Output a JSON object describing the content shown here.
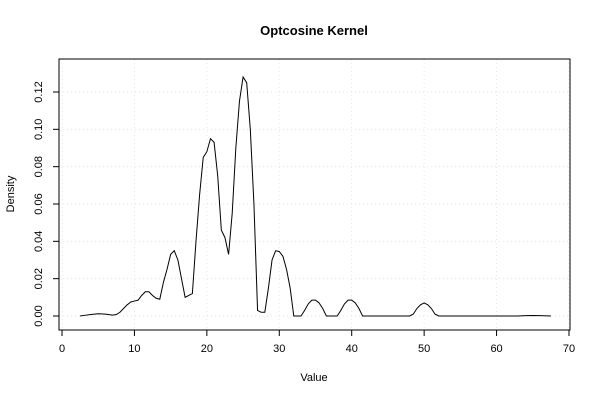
{
  "chart_data": {
    "type": "line",
    "title": "Optcosine Kernel",
    "xlabel": "Value",
    "ylabel": "Density",
    "xlim": [
      0,
      70
    ],
    "ylim": [
      0,
      0.13
    ],
    "x_ticks": [
      0,
      10,
      20,
      30,
      40,
      50,
      60,
      70
    ],
    "y_ticks": [
      0.0,
      0.02,
      0.04,
      0.06,
      0.08,
      0.1,
      0.12
    ],
    "x_tick_labels": [
      "0",
      "10",
      "20",
      "30",
      "40",
      "50",
      "60",
      "70"
    ],
    "y_tick_labels": [
      "0.00",
      "0.02",
      "0.04",
      "0.06",
      "0.08",
      "0.10",
      "0.12"
    ],
    "grid": true,
    "series": [
      {
        "x": [
          2.5,
          3.0,
          4.0,
          5.0,
          6.0,
          7.0,
          7.5,
          8.0,
          9.0,
          9.5,
          10.0,
          10.5,
          11.0,
          11.5,
          12.0,
          12.5,
          13.0,
          13.5,
          14.0,
          14.5,
          15.0,
          15.5,
          16.0,
          16.5,
          17.0,
          17.5,
          18.0,
          18.5,
          19.0,
          19.5,
          20.0,
          20.5,
          21.0,
          21.5,
          22.0,
          22.5,
          23.0,
          23.5,
          24.0,
          24.5,
          25.0,
          25.5,
          26.0,
          26.5,
          27.0,
          27.5,
          28.0,
          28.5,
          29.0,
          29.5,
          30.0,
          30.5,
          31.0,
          31.5,
          32.0,
          32.5,
          33.0,
          33.5,
          34.0,
          34.5,
          35.0,
          35.5,
          36.0,
          36.5,
          37.0,
          38.0,
          38.5,
          39.0,
          39.5,
          40.0,
          40.5,
          41.0,
          41.5,
          42.0,
          45.0,
          48.0,
          48.5,
          49.0,
          49.5,
          50.0,
          50.5,
          51.0,
          51.5,
          52.0,
          55.0,
          60.0,
          63.0,
          64.0,
          65.0,
          66.0,
          67.5
        ],
        "y": [
          0.0,
          0.0003,
          0.0008,
          0.0012,
          0.001,
          0.0005,
          0.0008,
          0.002,
          0.006,
          0.0075,
          0.008,
          0.0085,
          0.011,
          0.013,
          0.013,
          0.011,
          0.0095,
          0.009,
          0.018,
          0.025,
          0.033,
          0.035,
          0.03,
          0.02,
          0.01,
          0.011,
          0.012,
          0.04,
          0.065,
          0.085,
          0.088,
          0.095,
          0.093,
          0.075,
          0.046,
          0.042,
          0.033,
          0.055,
          0.09,
          0.115,
          0.128,
          0.125,
          0.1,
          0.06,
          0.003,
          0.002,
          0.002,
          0.015,
          0.03,
          0.035,
          0.0345,
          0.032,
          0.025,
          0.015,
          0.0,
          0.0,
          0.0,
          0.003,
          0.0065,
          0.0085,
          0.0085,
          0.007,
          0.004,
          0.0,
          0.0,
          0.0,
          0.003,
          0.0065,
          0.0085,
          0.0085,
          0.007,
          0.004,
          0.0,
          0.0,
          0.0,
          0.0,
          0.001,
          0.004,
          0.006,
          0.007,
          0.006,
          0.004,
          0.001,
          0.0,
          0.0,
          0.0,
          0.0,
          0.0002,
          0.0003,
          0.0002,
          0.0
        ]
      }
    ]
  }
}
